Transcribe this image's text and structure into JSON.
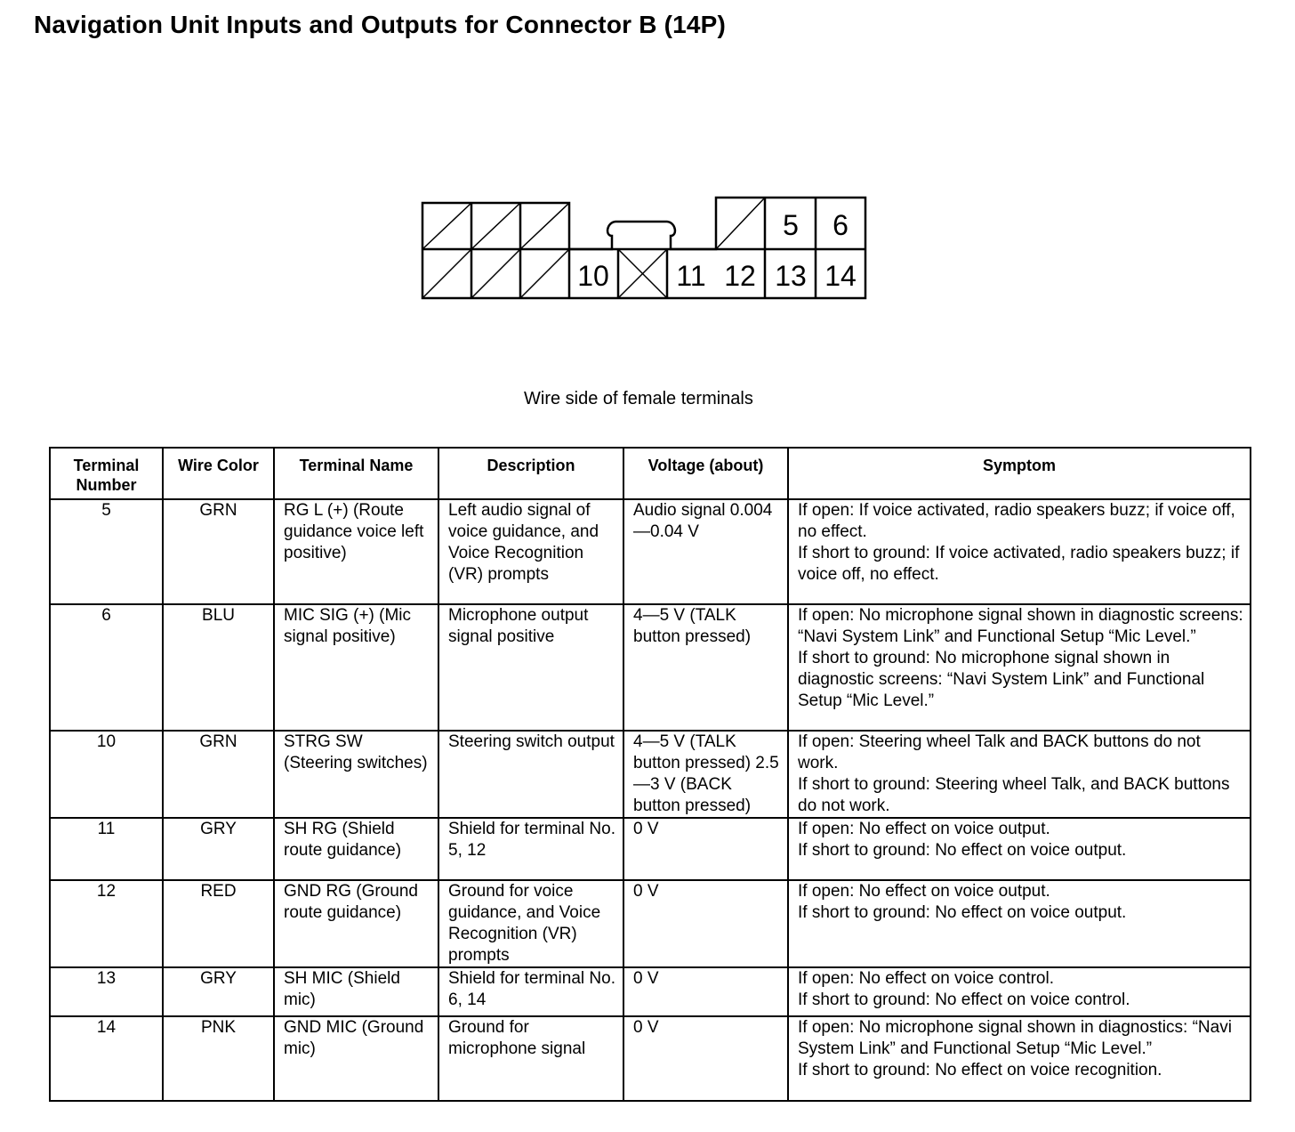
{
  "title": "Navigation Unit Inputs and Outputs for Connector B (14P)",
  "connector": {
    "caption": "Wire side of female terminals",
    "top_row_labels": [
      "5",
      "6"
    ],
    "bottom_row_labels": [
      "10",
      "11",
      "12",
      "13",
      "14"
    ]
  },
  "table": {
    "headers": [
      "Terminal Number",
      "Wire Color",
      "Terminal Name",
      "Description",
      "Voltage (about)",
      "Symptom"
    ],
    "rows": [
      {
        "terminal": "5",
        "color": "GRN",
        "name": "RG L (+) (Route guidance voice left positive)",
        "description": "Left audio signal of voice guidance, and Voice Recognition (VR) prompts",
        "voltage": "Audio signal 0.004—0.04 V",
        "symptom_open": "If open: If voice activated, radio speakers buzz; if voice off, no effect.",
        "symptom_short": "If short to ground: If voice activated, radio speakers buzz; if voice off, no effect."
      },
      {
        "terminal": "6",
        "color": "BLU",
        "name": "MIC SIG (+) (Mic signal positive)",
        "description": "Microphone output signal positive",
        "voltage": "4—5 V (TALK button pressed)",
        "symptom_open": "If open: No microphone signal shown in diagnostic screens: “Navi System Link” and Functional Setup “Mic Level.”",
        "symptom_short": "If short to ground: No microphone signal shown in diagnostic screens: “Navi System Link” and Functional Setup “Mic Level.”"
      },
      {
        "terminal": "10",
        "color": "GRN",
        "name": "STRG SW (Steering switches)",
        "description": "Steering switch output",
        "voltage": "4—5 V (TALK button pressed) 2.5—3 V (BACK button pressed)",
        "symptom_open": "If open: Steering wheel Talk and BACK buttons do not work.",
        "symptom_short": "If short to ground: Steering wheel Talk, and BACK buttons do not work."
      },
      {
        "terminal": "11",
        "color": "GRY",
        "name": "SH RG (Shield route guidance)",
        "description": "Shield for terminal No. 5, 12",
        "voltage": "0 V",
        "symptom_open": "If open: No effect on voice output.",
        "symptom_short": "If short to ground: No effect on voice output."
      },
      {
        "terminal": "12",
        "color": "RED",
        "name": "GND RG (Ground route guidance)",
        "description": "Ground for voice guidance, and Voice Recognition (VR) prompts",
        "voltage": "0 V",
        "symptom_open": "If open: No effect on voice output.",
        "symptom_short": "If short to ground: No effect on voice output."
      },
      {
        "terminal": "13",
        "color": "GRY",
        "name": "SH MIC (Shield mic)",
        "description": "Shield for terminal No. 6, 14",
        "voltage": "0 V",
        "symptom_open": "If open: No effect on voice control.",
        "symptom_short": "If short to ground: No effect on voice control."
      },
      {
        "terminal": "14",
        "color": "PNK",
        "name": "GND MIC (Ground mic)",
        "description": "Ground for microphone signal",
        "voltage": "0 V",
        "symptom_open": "If open: No microphone signal shown in diagnostics: “Navi System Link” and Functional Setup “Mic Level.”",
        "symptom_short": "If short to ground: No effect on voice recognition."
      }
    ]
  }
}
